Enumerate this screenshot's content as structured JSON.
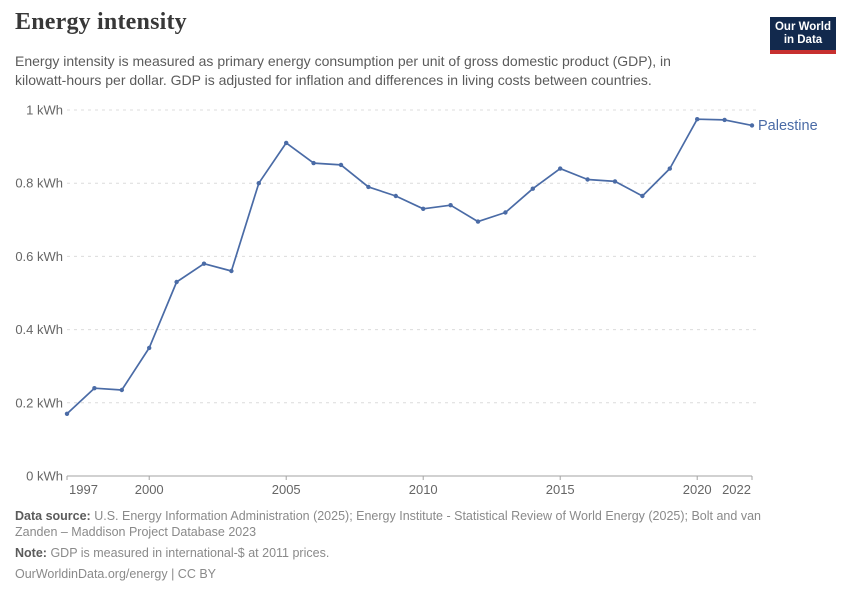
{
  "header": {
    "title": "Energy intensity",
    "subtitle": "Energy intensity is measured as primary energy consumption per unit of gross domestic product (GDP), in\nkilowatt-hours per dollar. GDP is adjusted for inflation and differences in living costs between countries."
  },
  "logo": {
    "line1": "Our World",
    "line2": "in Data",
    "bg_color": "#12294d",
    "accent_color": "#c7302f"
  },
  "chart_data": {
    "type": "line",
    "title": "Energy intensity",
    "unit": "kWh",
    "xlabel": "",
    "ylabel": "",
    "xlim": [
      1997,
      2022
    ],
    "ylim": [
      0,
      1
    ],
    "grid": true,
    "legend_position": "end-of-line-label",
    "x_ticks": [
      1997,
      2000,
      2005,
      2010,
      2015,
      2020,
      2022
    ],
    "y_ticks": [
      {
        "value": 0,
        "label": "0 kWh"
      },
      {
        "value": 0.2,
        "label": "0.2 kWh"
      },
      {
        "value": 0.4,
        "label": "0.4 kWh"
      },
      {
        "value": 0.6,
        "label": "0.6 kWh"
      },
      {
        "value": 0.8,
        "label": "0.8 kWh"
      },
      {
        "value": 1,
        "label": "1 kWh"
      }
    ],
    "series": [
      {
        "name": "Palestine",
        "color": "#4a6ba6",
        "x": [
          1997,
          1998,
          1999,
          2000,
          2001,
          2002,
          2003,
          2004,
          2005,
          2006,
          2007,
          2008,
          2009,
          2010,
          2011,
          2012,
          2013,
          2014,
          2015,
          2016,
          2017,
          2018,
          2019,
          2020,
          2021,
          2022
        ],
        "values": [
          0.17,
          0.24,
          0.235,
          0.35,
          0.53,
          0.58,
          0.56,
          0.8,
          0.91,
          0.855,
          0.85,
          0.79,
          0.765,
          0.73,
          0.74,
          0.695,
          0.72,
          0.785,
          0.84,
          0.81,
          0.805,
          0.765,
          0.84,
          0.975,
          0.973,
          0.958
        ]
      }
    ]
  },
  "footer": {
    "data_source_label": "Data source:",
    "data_source_text": "U.S. Energy Information Administration (2025); Energy Institute - Statistical Review of World Energy (2025); Bolt and van\nZanden – Maddison Project Database 2023",
    "note_label": "Note:",
    "note_text": "GDP is measured in international-$ at 2011 prices.",
    "citation": "OurWorldinData.org/energy | CC BY"
  }
}
